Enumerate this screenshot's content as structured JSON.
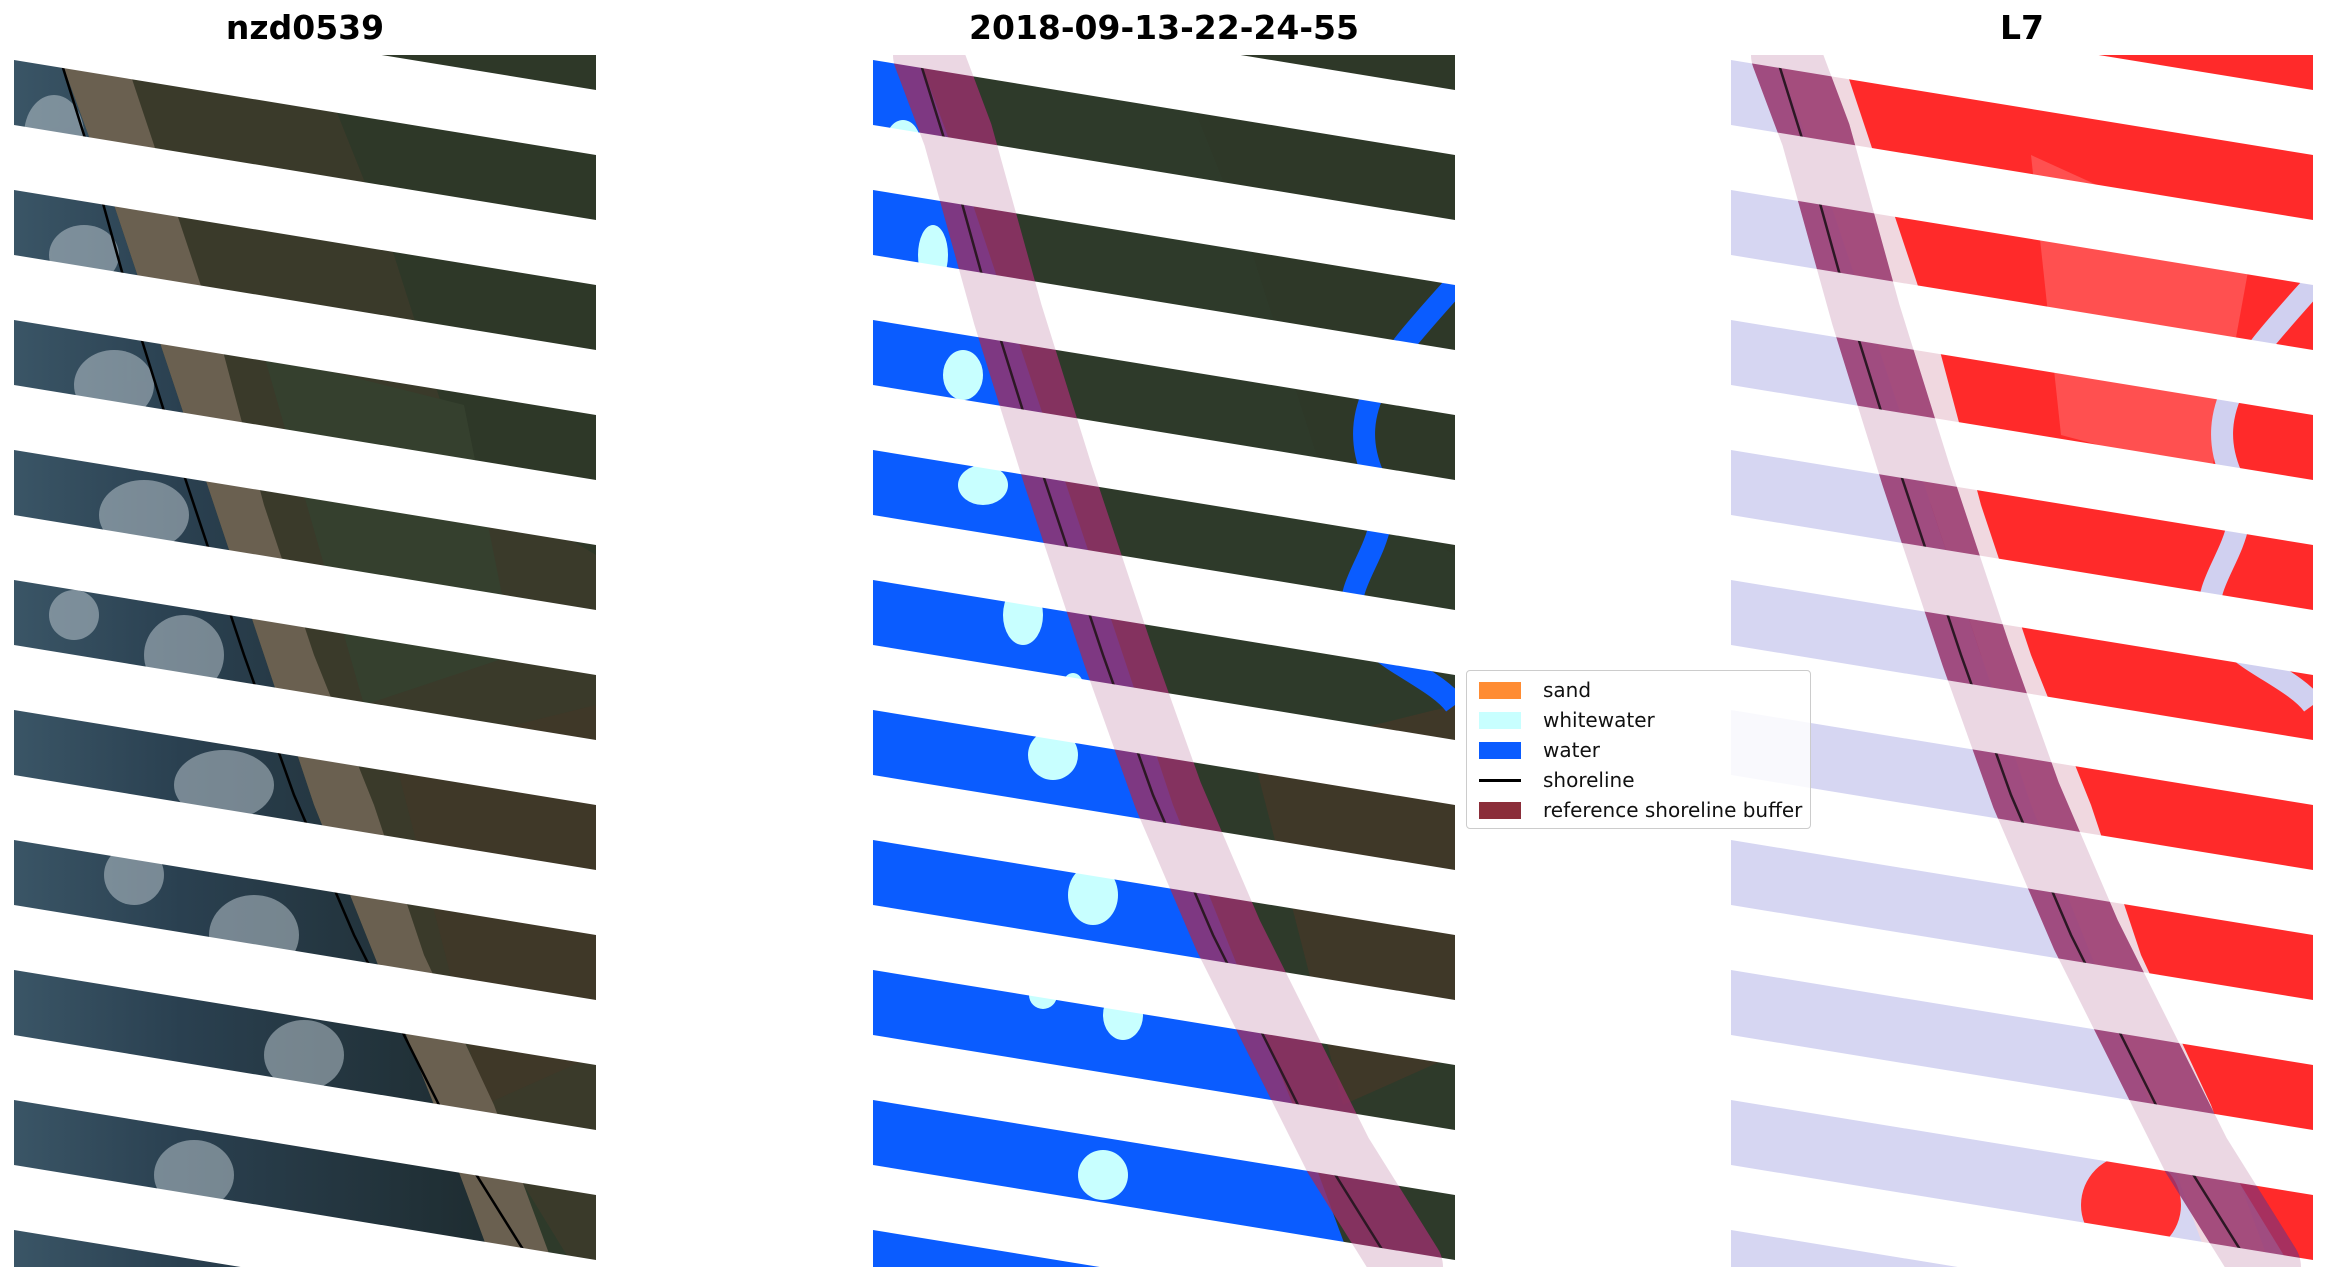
{
  "panels": [
    {
      "title": "nzd0539"
    },
    {
      "title": "2018-09-13-22-24-55"
    },
    {
      "title": "L7"
    }
  ],
  "legend": {
    "items": [
      {
        "label": "sand",
        "color": "#ff8c33",
        "kind": "patch"
      },
      {
        "label": "whitewater",
        "color": "#c8ffff",
        "kind": "patch"
      },
      {
        "label": "water",
        "color": "#0a5cff",
        "kind": "patch"
      },
      {
        "label": "shoreline",
        "color": "#000000",
        "kind": "line"
      },
      {
        "label": "reference shoreline buffer",
        "color": "#8b2e3a",
        "kind": "patch"
      }
    ]
  },
  "colors": {
    "water": "#0a5cff",
    "whitewater": "#c8ffff",
    "sand": "#ff8c33",
    "buffer": "#8b1e5a",
    "index_positive": "#ff2020",
    "index_negative": "#c8c8f0"
  }
}
